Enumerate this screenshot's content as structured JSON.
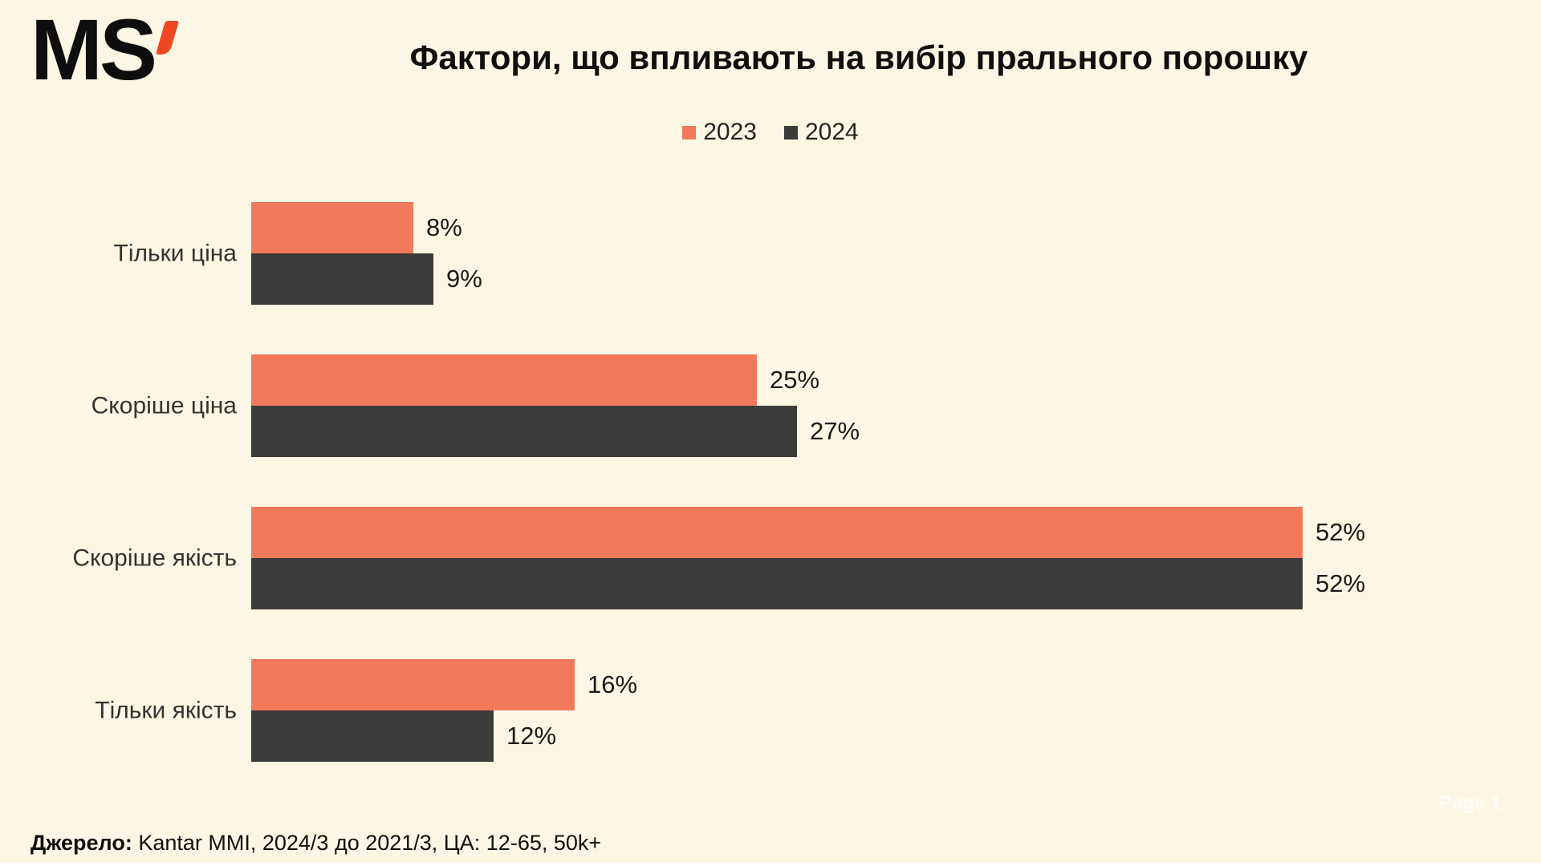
{
  "logo": {
    "text": "MS",
    "apostrophe_color": "#EE4823"
  },
  "title": "Фактори, що впливають на вибір прального порошку",
  "chart_data": {
    "type": "bar",
    "orientation": "horizontal",
    "title": "Фактори, що впливають на вибір прального порошку",
    "categories": [
      "Тільки ціна",
      "Скоріше ціна",
      "Скоріше якість",
      "Тільки якість"
    ],
    "series": [
      {
        "name": "2023",
        "color": "#F2795B",
        "values": [
          8,
          25,
          52,
          16
        ]
      },
      {
        "name": "2024",
        "color": "#3B3B39",
        "values": [
          9,
          27,
          52,
          12
        ]
      }
    ],
    "value_suffix": "%",
    "xlim": [
      0,
      60
    ],
    "grid": false,
    "legend_position": "top"
  },
  "source": {
    "label": "Джерело:",
    "text": " Kantar MMI, 2024/3 до 2021/3, ЦА: 12-65, 50k+"
  },
  "page_marker": "Page 1",
  "colors": {
    "background": "#FCF6E4",
    "text": "#0F0F0F"
  }
}
